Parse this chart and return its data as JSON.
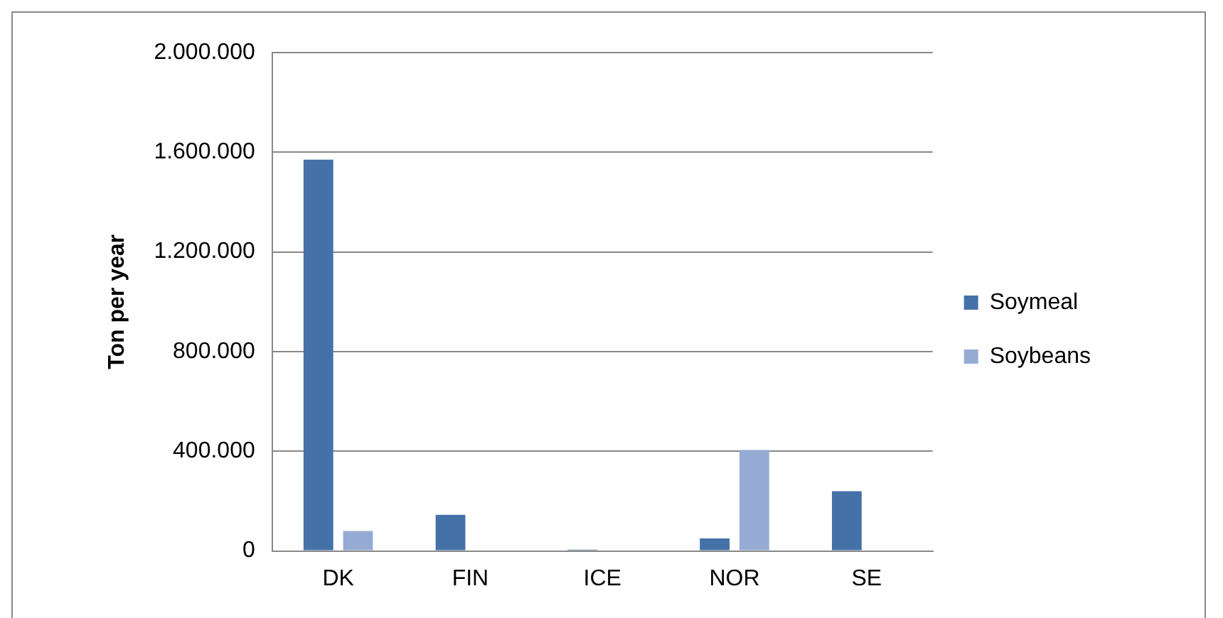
{
  "chart_data": {
    "type": "bar",
    "ylabel": "Ton per year",
    "categories": [
      "DK",
      "FIN",
      "ICE",
      "NOR",
      "SE"
    ],
    "series": [
      {
        "name": "Soymeal",
        "color": "#4571a9",
        "values": [
          1570000,
          145000,
          5000,
          50000,
          240000
        ]
      },
      {
        "name": "Soybeans",
        "color": "#95abd3",
        "values": [
          80000,
          null,
          null,
          405000,
          null
        ]
      }
    ],
    "ylim": [
      0,
      2000000
    ],
    "yticks": [
      {
        "value": 0,
        "label": "0"
      },
      {
        "value": 400000,
        "label": "400.000"
      },
      {
        "value": 800000,
        "label": "800.000"
      },
      {
        "value": 1200000,
        "label": "1.200.000"
      },
      {
        "value": 1600000,
        "label": "1.600.000"
      },
      {
        "value": 2000000,
        "label": "2.000.000"
      }
    ],
    "grid": "y",
    "legend": "right"
  }
}
